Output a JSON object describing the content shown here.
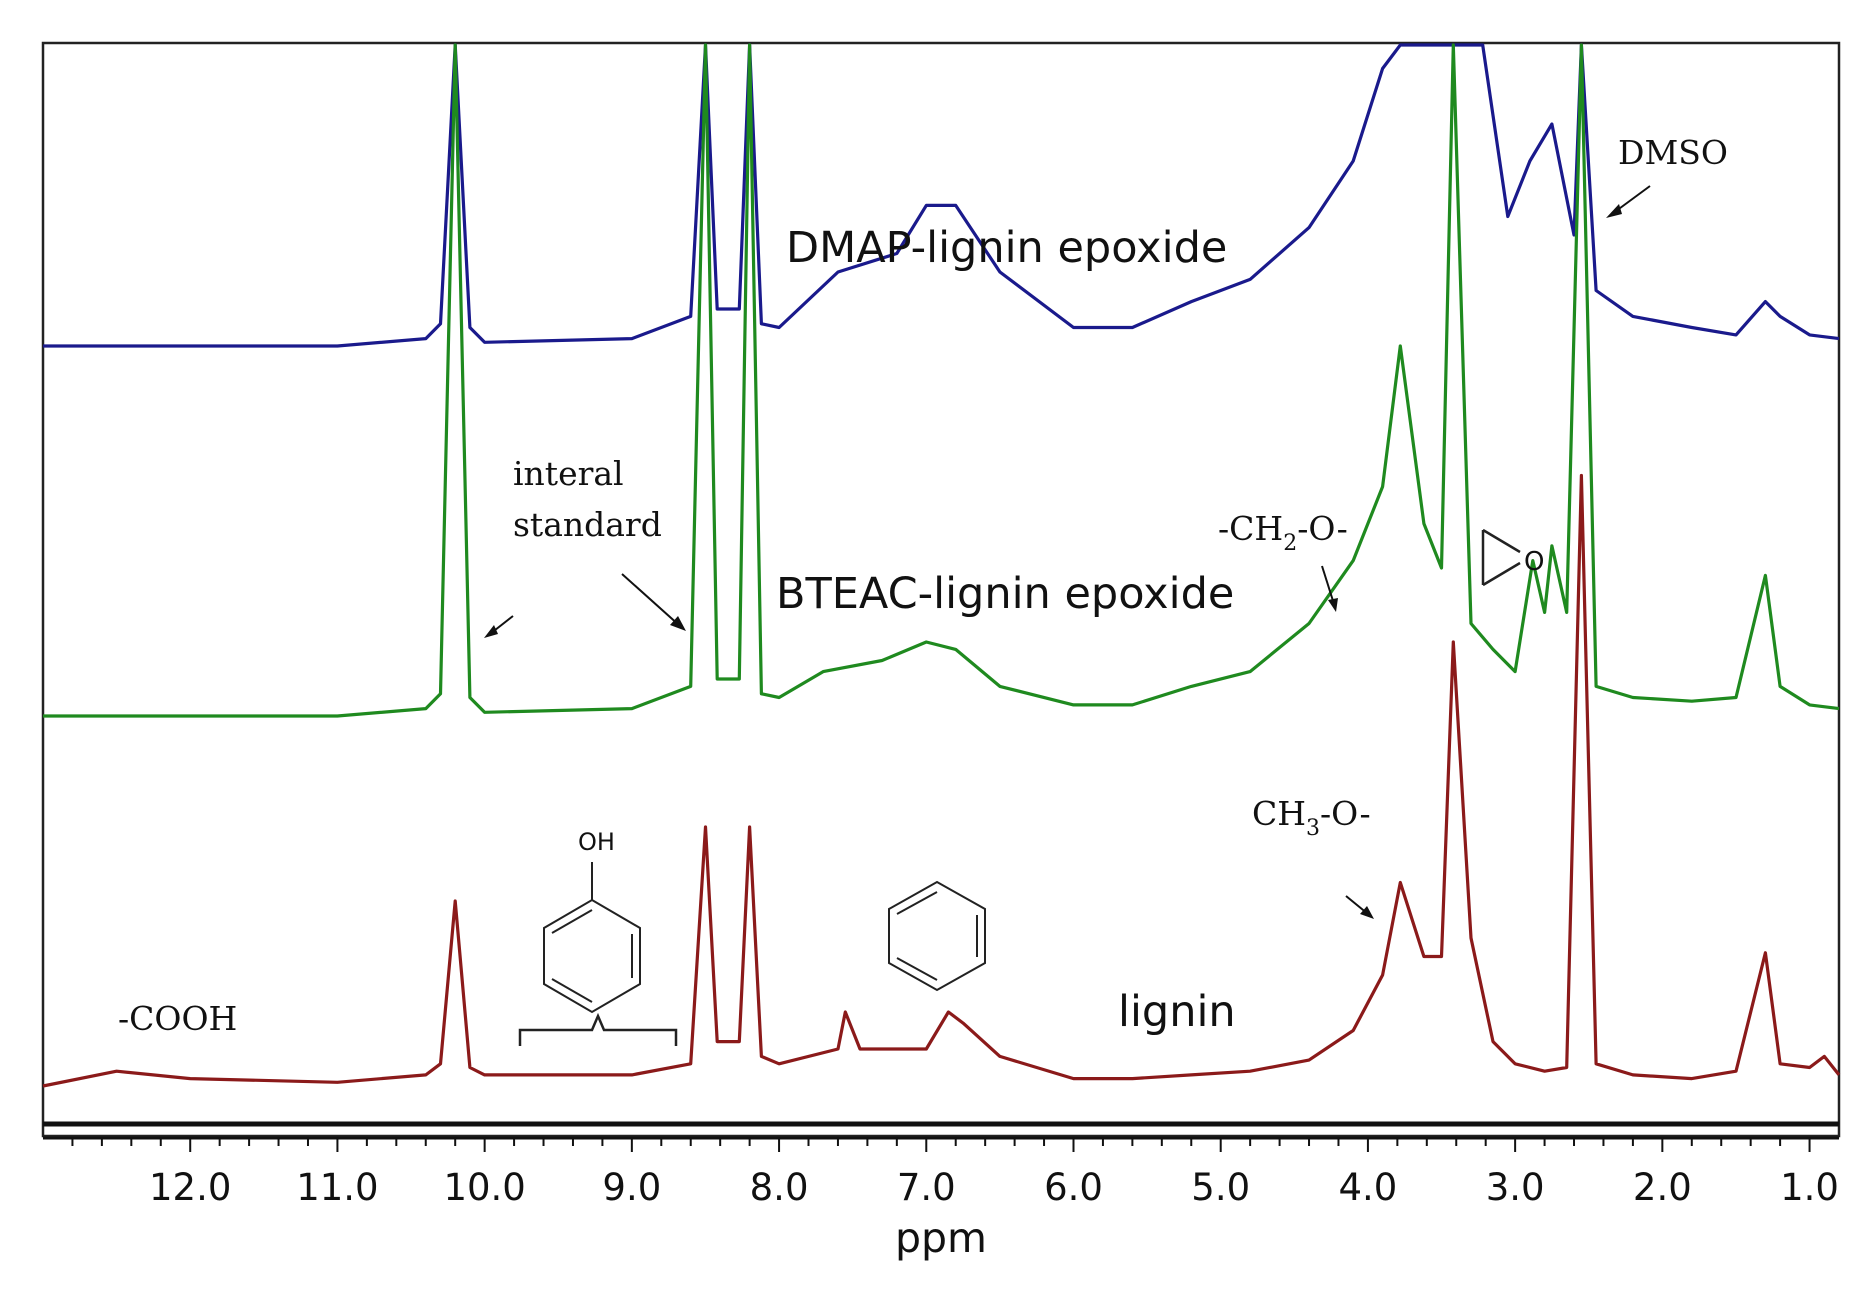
{
  "chart_data": {
    "type": "line",
    "title": "",
    "xlabel": "ppm",
    "ylabel": "",
    "x_reversed": true,
    "xlim": [
      13.0,
      0.8
    ],
    "x_ticks": [
      12.0,
      11.0,
      10.0,
      9.0,
      8.0,
      7.0,
      6.0,
      5.0,
      4.0,
      3.0,
      2.0,
      1.0
    ],
    "x_tick_labels": [
      "12.0",
      "11.0",
      "10.0",
      "9.0",
      "8.0",
      "7.0",
      "6.0",
      "5.0",
      "4.0",
      "3.0",
      "2.0",
      "1.0"
    ],
    "grid": false,
    "legend": "none",
    "series": [
      {
        "name": "DMAP-lignin epoxide",
        "color": "#1a1a8c",
        "baseline_offset": 2.0,
        "points": [
          [
            13.0,
            0.0
          ],
          [
            11.0,
            0.0
          ],
          [
            10.4,
            0.02
          ],
          [
            10.3,
            0.06
          ],
          [
            10.2,
            3.0
          ],
          [
            10.1,
            0.05
          ],
          [
            10.0,
            0.01
          ],
          [
            9.0,
            0.02
          ],
          [
            8.6,
            0.08
          ],
          [
            8.5,
            3.0
          ],
          [
            8.42,
            0.1
          ],
          [
            8.27,
            0.1
          ],
          [
            8.2,
            3.0
          ],
          [
            8.12,
            0.06
          ],
          [
            8.0,
            0.05
          ],
          [
            7.6,
            0.2
          ],
          [
            7.2,
            0.25
          ],
          [
            7.0,
            0.38
          ],
          [
            6.8,
            0.38
          ],
          [
            6.5,
            0.2
          ],
          [
            6.0,
            0.05
          ],
          [
            5.6,
            0.05
          ],
          [
            5.2,
            0.12
          ],
          [
            4.8,
            0.18
          ],
          [
            4.4,
            0.32
          ],
          [
            4.1,
            0.5
          ],
          [
            3.9,
            0.75
          ],
          [
            3.78,
            1.68
          ],
          [
            3.62,
            1.05
          ],
          [
            3.5,
            0.95
          ],
          [
            3.42,
            3.0
          ],
          [
            3.35,
            0.9
          ],
          [
            3.22,
            0.92
          ],
          [
            3.05,
            0.35
          ],
          [
            2.9,
            0.5
          ],
          [
            2.75,
            0.6
          ],
          [
            2.6,
            0.3
          ],
          [
            2.55,
            3.0
          ],
          [
            2.45,
            0.15
          ],
          [
            2.2,
            0.08
          ],
          [
            1.8,
            0.05
          ],
          [
            1.5,
            0.03
          ],
          [
            1.3,
            0.12
          ],
          [
            1.2,
            0.08
          ],
          [
            1.0,
            0.03
          ],
          [
            0.8,
            0.02
          ]
        ]
      },
      {
        "name": "BTEAC-lignin epoxide",
        "color": "#1f8a1f",
        "baseline_offset": 1.0,
        "points": [
          [
            13.0,
            0.0
          ],
          [
            11.0,
            0.0
          ],
          [
            10.4,
            0.02
          ],
          [
            10.3,
            0.06
          ],
          [
            10.2,
            3.0
          ],
          [
            10.1,
            0.05
          ],
          [
            10.0,
            0.01
          ],
          [
            9.0,
            0.02
          ],
          [
            8.6,
            0.08
          ],
          [
            8.5,
            3.0
          ],
          [
            8.42,
            0.1
          ],
          [
            8.27,
            0.1
          ],
          [
            8.2,
            3.0
          ],
          [
            8.12,
            0.06
          ],
          [
            8.0,
            0.05
          ],
          [
            7.7,
            0.12
          ],
          [
            7.3,
            0.15
          ],
          [
            7.0,
            0.2
          ],
          [
            6.8,
            0.18
          ],
          [
            6.5,
            0.08
          ],
          [
            6.0,
            0.03
          ],
          [
            5.6,
            0.03
          ],
          [
            5.2,
            0.08
          ],
          [
            4.8,
            0.12
          ],
          [
            4.4,
            0.25
          ],
          [
            4.1,
            0.42
          ],
          [
            3.9,
            0.62
          ],
          [
            3.78,
            1.0
          ],
          [
            3.62,
            0.52
          ],
          [
            3.5,
            0.4
          ],
          [
            3.42,
            3.0
          ],
          [
            3.3,
            0.25
          ],
          [
            3.15,
            0.18
          ],
          [
            3.0,
            0.12
          ],
          [
            2.88,
            0.42
          ],
          [
            2.8,
            0.28
          ],
          [
            2.75,
            0.46
          ],
          [
            2.65,
            0.28
          ],
          [
            2.55,
            3.0
          ],
          [
            2.45,
            0.08
          ],
          [
            2.2,
            0.05
          ],
          [
            1.8,
            0.04
          ],
          [
            1.5,
            0.05
          ],
          [
            1.3,
            0.38
          ],
          [
            1.2,
            0.08
          ],
          [
            1.0,
            0.03
          ],
          [
            0.8,
            0.02
          ]
        ]
      },
      {
        "name": "lignin",
        "color": "#8b1a1a",
        "baseline_offset": 0.0,
        "points": [
          [
            13.0,
            0.0
          ],
          [
            12.5,
            0.04
          ],
          [
            12.0,
            0.02
          ],
          [
            11.0,
            0.01
          ],
          [
            10.4,
            0.03
          ],
          [
            10.3,
            0.06
          ],
          [
            10.2,
            0.5
          ],
          [
            10.1,
            0.05
          ],
          [
            10.0,
            0.03
          ],
          [
            9.0,
            0.03
          ],
          [
            8.6,
            0.06
          ],
          [
            8.5,
            0.7
          ],
          [
            8.42,
            0.12
          ],
          [
            8.27,
            0.12
          ],
          [
            8.2,
            0.7
          ],
          [
            8.12,
            0.08
          ],
          [
            8.0,
            0.06
          ],
          [
            7.6,
            0.1
          ],
          [
            7.55,
            0.2
          ],
          [
            7.45,
            0.1
          ],
          [
            7.0,
            0.1
          ],
          [
            6.85,
            0.2
          ],
          [
            6.75,
            0.17
          ],
          [
            6.5,
            0.08
          ],
          [
            6.0,
            0.02
          ],
          [
            5.6,
            0.02
          ],
          [
            5.2,
            0.03
          ],
          [
            4.8,
            0.04
          ],
          [
            4.4,
            0.07
          ],
          [
            4.1,
            0.15
          ],
          [
            3.9,
            0.3
          ],
          [
            3.78,
            0.55
          ],
          [
            3.62,
            0.35
          ],
          [
            3.5,
            0.35
          ],
          [
            3.42,
            1.2
          ],
          [
            3.3,
            0.4
          ],
          [
            3.15,
            0.12
          ],
          [
            3.0,
            0.06
          ],
          [
            2.8,
            0.04
          ],
          [
            2.65,
            0.05
          ],
          [
            2.55,
            1.65
          ],
          [
            2.45,
            0.06
          ],
          [
            2.2,
            0.03
          ],
          [
            1.8,
            0.02
          ],
          [
            1.5,
            0.04
          ],
          [
            1.3,
            0.36
          ],
          [
            1.2,
            0.06
          ],
          [
            1.0,
            0.05
          ],
          [
            0.9,
            0.08
          ],
          [
            0.8,
            0.03
          ]
        ]
      }
    ],
    "annotations": {
      "dmso": "DMSO",
      "internal_line1": "interal",
      "internal_line2": "standard",
      "ch2o": "-CH",
      "ch2o_sub": "2",
      "ch2o_tail": "-O-",
      "ch3o": "CH",
      "ch3o_sub": "3",
      "ch3o_tail": "-O-",
      "cooh": "-COOH",
      "phenol_oh": "OH",
      "epoxide_o": "O"
    }
  }
}
